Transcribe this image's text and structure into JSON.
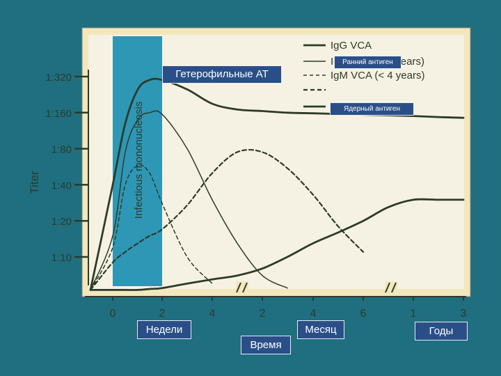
{
  "overlays": {
    "heterophile": "Гетерофильные АТ",
    "early_antigen": "Ранний антиген",
    "nuclear_antigen": "Ядерный антиген",
    "weeks": "Недели",
    "time": "Время",
    "month": "Месяц",
    "years": "Годы"
  },
  "colors": {
    "slide_background": "#1f6f80",
    "chart_frame": "#f3e7bd",
    "plot_background": "#f6f2e3",
    "shade_band": "#2e97b6",
    "curves": "#2c3b28",
    "tag_fill": "#2a4f88"
  },
  "chart_data": {
    "type": "line",
    "title": "",
    "xlabel": "",
    "ylabel": "Titer",
    "y_scale": "log2",
    "y_ticks": [
      "1:10",
      "1:20",
      "1:40",
      "1:80",
      "1:160",
      "1:320"
    ],
    "y_tick_values": [
      10,
      20,
      40,
      80,
      160,
      320
    ],
    "ylim": [
      5,
      500
    ],
    "x_ticks": [
      "0",
      "2",
      "4",
      "2",
      "4",
      "6",
      "1",
      "3"
    ],
    "x_tick_units": [
      "weeks",
      "weeks",
      "weeks",
      "months",
      "months",
      "months",
      "years",
      "years"
    ],
    "axis_breaks": [
      "between 4 weeks and 2 months",
      "between 6 months and 1 year"
    ],
    "shaded_region": {
      "label": "Infectious mononucleosis",
      "from_week": 0,
      "to_week": 2
    },
    "grid": false,
    "legend_position": "top-right",
    "x_positions": [
      "-1 wk",
      "0 wk",
      "0.5 wk",
      "1 wk",
      "1.5 wk",
      "2 wk",
      "3 wk",
      "4 wk",
      "1 mo",
      "2 mo",
      "3 mo",
      "4 mo",
      "5 mo",
      "6 mo",
      "8 mo",
      "1 yr",
      "2 yr",
      "3 yr"
    ],
    "series": [
      {
        "name": "IgG VCA",
        "style": "solid-thick",
        "values": [
          5.3,
          40,
          130,
          250,
          300,
          300,
          250,
          190,
          170,
          165,
          160,
          158,
          156,
          154,
          152,
          150,
          147,
          145
        ]
      },
      {
        "name": "IgM VCA (≥ 4 years)",
        "style": "solid-thin",
        "values": [
          5.3,
          15,
          75,
          140,
          160,
          155,
          80,
          30,
          13,
          7,
          5.5,
          null,
          null,
          null,
          null,
          null,
          null,
          null
        ]
      },
      {
        "name": "IgM VCA (< 4 years)",
        "style": "dashed-thin",
        "values": [
          5.3,
          12,
          40,
          58,
          50,
          28,
          10,
          6,
          null,
          null,
          null,
          null,
          null,
          null,
          null,
          null,
          null,
          null
        ]
      },
      {
        "name": "",
        "style": "dashed-thick",
        "values": [
          5.3,
          9,
          11,
          13,
          15,
          17,
          27,
          50,
          75,
          75,
          55,
          33,
          18,
          11,
          null,
          null,
          null,
          null
        ]
      },
      {
        "name": "",
        "style": "solid-thick",
        "values": [
          5.3,
          5.3,
          5.3,
          5.3,
          5.4,
          5.5,
          6,
          6.5,
          7,
          8,
          10,
          13,
          16,
          20,
          26,
          30,
          30,
          30
        ]
      }
    ]
  }
}
